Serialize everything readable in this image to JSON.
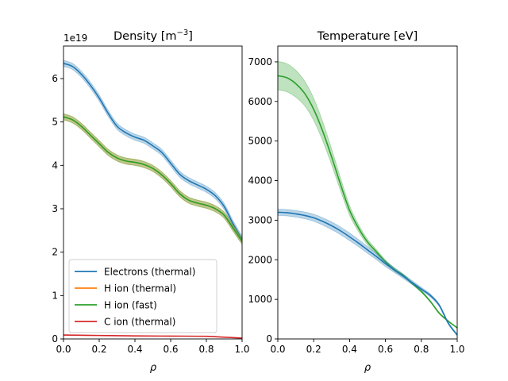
{
  "chart_data": [
    {
      "type": "line",
      "title": "Density [m",
      "title_sup": "−3",
      "title_suffix": "]",
      "xlabel": "ρ",
      "ylabel": "",
      "offset_text": "1e19",
      "xlim": [
        0,
        1.0
      ],
      "ylim": [
        0,
        6.75
      ],
      "xticks": [
        0.0,
        0.2,
        0.4,
        0.6,
        0.8,
        1.0
      ],
      "xtick_labels": [
        "0.0",
        "0.2",
        "0.4",
        "0.6",
        "0.8",
        "1.0"
      ],
      "yticks": [
        0,
        1,
        2,
        3,
        4,
        5,
        6
      ],
      "ytick_labels": [
        "0",
        "1",
        "2",
        "3",
        "4",
        "5",
        "6"
      ],
      "grid": false,
      "legend": "lower-left",
      "series": [
        {
          "name": "Electrons (thermal)",
          "color": "#1f77b4",
          "band": true,
          "band_halfwidth": 0.07,
          "x": [
            0.0,
            0.05,
            0.1,
            0.15,
            0.2,
            0.25,
            0.3,
            0.35,
            0.4,
            0.45,
            0.5,
            0.55,
            0.6,
            0.65,
            0.7,
            0.75,
            0.8,
            0.85,
            0.9,
            0.95,
            1.0
          ],
          "y": [
            6.35,
            6.28,
            6.1,
            5.85,
            5.55,
            5.2,
            4.9,
            4.75,
            4.65,
            4.58,
            4.45,
            4.3,
            4.05,
            3.8,
            3.65,
            3.55,
            3.45,
            3.3,
            3.05,
            2.65,
            2.3
          ]
        },
        {
          "name": "H ion (thermal)",
          "color": "#ff7f0e",
          "band": true,
          "band_halfwidth": 0.07,
          "x": [
            0.0,
            0.05,
            0.1,
            0.15,
            0.2,
            0.25,
            0.3,
            0.35,
            0.4,
            0.45,
            0.5,
            0.55,
            0.6,
            0.65,
            0.7,
            0.75,
            0.8,
            0.85,
            0.9,
            0.95,
            1.0
          ],
          "y": [
            5.12,
            5.05,
            4.9,
            4.7,
            4.5,
            4.3,
            4.17,
            4.1,
            4.07,
            4.02,
            3.93,
            3.78,
            3.58,
            3.35,
            3.2,
            3.13,
            3.08,
            3.0,
            2.85,
            2.55,
            2.25
          ]
        },
        {
          "name": "H ion (fast)",
          "color": "#2ca02c",
          "band": true,
          "band_halfwidth": 0.07,
          "x": [
            0.0,
            0.05,
            0.1,
            0.15,
            0.2,
            0.25,
            0.3,
            0.35,
            0.4,
            0.45,
            0.5,
            0.55,
            0.6,
            0.65,
            0.7,
            0.75,
            0.8,
            0.85,
            0.9,
            0.95,
            1.0
          ],
          "y": [
            5.12,
            5.05,
            4.9,
            4.7,
            4.5,
            4.3,
            4.17,
            4.1,
            4.07,
            4.02,
            3.93,
            3.78,
            3.58,
            3.35,
            3.2,
            3.13,
            3.08,
            3.0,
            2.85,
            2.55,
            2.25
          ]
        },
        {
          "name": "C ion (thermal)",
          "color": "#d62728",
          "band": false,
          "x": [
            0.0,
            0.2,
            0.4,
            0.6,
            0.8,
            0.9,
            1.0
          ],
          "y": [
            0.09,
            0.08,
            0.07,
            0.065,
            0.06,
            0.04,
            0.02
          ]
        }
      ]
    },
    {
      "type": "line",
      "title": "Temperature [eV]",
      "xlabel": "ρ",
      "ylabel": "",
      "xlim": [
        0,
        1.0
      ],
      "ylim": [
        0,
        7400
      ],
      "xticks": [
        0.0,
        0.2,
        0.4,
        0.6,
        0.8,
        1.0
      ],
      "xtick_labels": [
        "0.0",
        "0.2",
        "0.4",
        "0.6",
        "0.8",
        "1.0"
      ],
      "yticks": [
        0,
        1000,
        2000,
        3000,
        4000,
        5000,
        6000,
        7000
      ],
      "ytick_labels": [
        "0",
        "1000",
        "2000",
        "3000",
        "4000",
        "5000",
        "6000",
        "7000"
      ],
      "grid": false,
      "series": [
        {
          "color": "#2ca02c",
          "band": true,
          "x": [
            0.0,
            0.05,
            0.1,
            0.15,
            0.2,
            0.25,
            0.3,
            0.35,
            0.4,
            0.45,
            0.5,
            0.55,
            0.6,
            0.65,
            0.7,
            0.75,
            0.8,
            0.85,
            0.9,
            0.95,
            1.0
          ],
          "y": [
            6650,
            6600,
            6450,
            6200,
            5800,
            5250,
            4600,
            3900,
            3250,
            2800,
            2450,
            2200,
            1950,
            1750,
            1600,
            1400,
            1200,
            950,
            650,
            450,
            280
          ],
          "band_halfwidth": [
            360,
            355,
            340,
            310,
            280,
            240,
            200,
            160,
            120,
            90,
            70,
            55,
            45,
            38,
            32,
            28,
            24,
            20,
            16,
            14,
            12
          ]
        },
        {
          "color": "#1f77b4",
          "band": true,
          "x": [
            0.0,
            0.05,
            0.1,
            0.15,
            0.2,
            0.25,
            0.3,
            0.35,
            0.4,
            0.45,
            0.5,
            0.55,
            0.6,
            0.65,
            0.7,
            0.75,
            0.8,
            0.85,
            0.9,
            0.95,
            1.0
          ],
          "y": [
            3200,
            3190,
            3160,
            3120,
            3060,
            2970,
            2860,
            2730,
            2580,
            2420,
            2250,
            2080,
            1900,
            1740,
            1580,
            1420,
            1260,
            1100,
            850,
            400,
            100
          ],
          "band_halfwidth": [
            80,
            80,
            82,
            85,
            88,
            92,
            95,
            96,
            95,
            90,
            85,
            78,
            70,
            62,
            55,
            48,
            42,
            36,
            30,
            25,
            20
          ]
        }
      ]
    }
  ]
}
